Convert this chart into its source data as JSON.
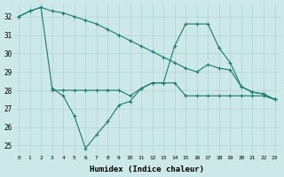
{
  "xlabel": "Humidex (Indice chaleur)",
  "ylabel": "",
  "xlim": [
    -0.5,
    23.5
  ],
  "ylim": [
    24.5,
    32.7
  ],
  "yticks": [
    25,
    26,
    27,
    28,
    29,
    30,
    31,
    32
  ],
  "xticks": [
    0,
    1,
    2,
    3,
    4,
    5,
    6,
    7,
    8,
    9,
    10,
    11,
    12,
    13,
    14,
    15,
    16,
    17,
    18,
    19,
    20,
    21,
    22,
    23
  ],
  "bg_color": "#cce8e8",
  "line_color": "#1a7a6e",
  "line1_x": [
    0,
    1,
    2,
    3,
    4,
    5,
    6,
    7,
    8,
    9,
    10,
    11,
    12,
    13,
    14,
    15,
    16,
    17,
    18,
    19,
    20,
    21,
    22,
    23
  ],
  "line1_y": [
    32.0,
    32.3,
    32.5,
    32.3,
    32.2,
    32.0,
    31.8,
    31.6,
    31.3,
    31.0,
    30.7,
    30.4,
    30.1,
    29.8,
    29.5,
    29.2,
    29.0,
    29.4,
    29.2,
    29.1,
    28.2,
    27.9,
    27.8,
    27.5
  ],
  "line2_x": [
    0,
    1,
    2,
    3,
    4,
    5,
    6,
    7,
    8,
    9,
    10,
    11,
    12,
    13,
    14,
    15,
    16,
    17,
    18,
    19,
    20,
    21,
    22,
    23
  ],
  "line2_y": [
    32.0,
    32.3,
    32.5,
    28.1,
    27.7,
    26.6,
    24.85,
    25.6,
    26.3,
    27.2,
    27.4,
    28.1,
    28.4,
    28.4,
    30.4,
    31.6,
    31.6,
    31.6,
    30.3,
    29.5,
    28.2,
    27.9,
    27.8,
    27.5
  ],
  "line3_x": [
    3,
    4,
    5,
    6,
    7,
    8,
    9,
    10,
    11,
    12,
    13,
    14,
    15,
    16,
    17,
    18,
    19,
    20,
    21,
    22,
    23
  ],
  "line3_y": [
    28.0,
    28.0,
    28.0,
    28.0,
    28.0,
    28.0,
    28.0,
    27.7,
    28.1,
    28.4,
    28.4,
    28.4,
    27.7,
    27.7,
    27.7,
    27.7,
    27.7,
    27.7,
    27.7,
    27.7,
    27.5
  ]
}
